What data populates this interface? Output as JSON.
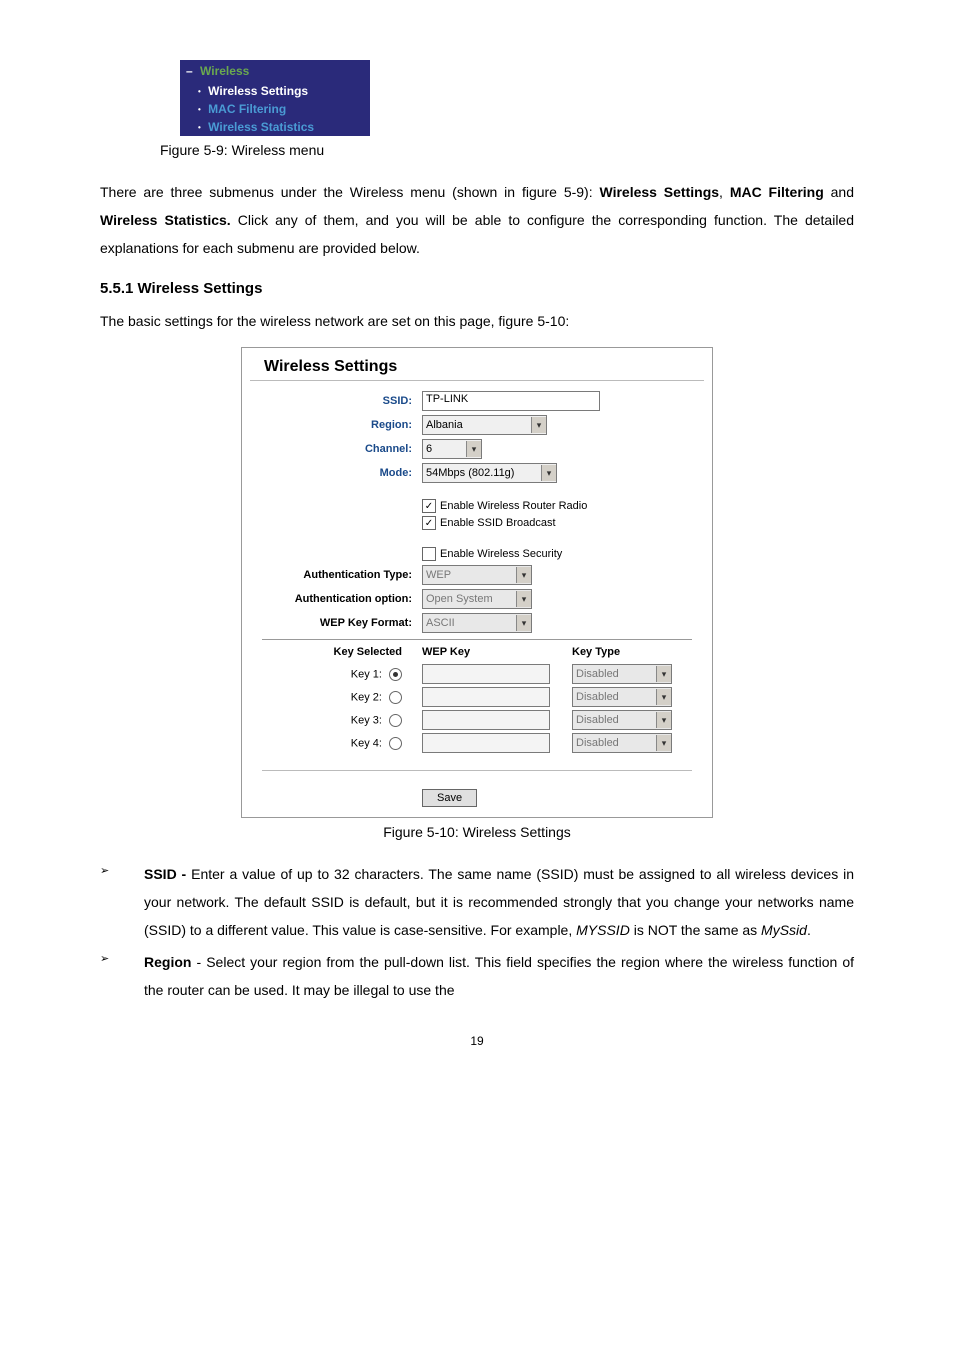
{
  "nav": {
    "header": "Wireless",
    "items": [
      {
        "label": "Wireless Settings",
        "active": true
      },
      {
        "label": "MAC Filtering",
        "active": false
      },
      {
        "label": "Wireless Statistics",
        "active": false
      }
    ]
  },
  "caption_nav": "Figure 5-9: Wireless menu",
  "para1_a": "There are three submenus under the Wireless menu (shown in figure 5-9): ",
  "para1_b": "Wireless Settings",
  "para1_c": ", ",
  "para1_d": "MAC Filtering",
  "para1_e": " and ",
  "para1_f": "Wireless Statistics.",
  "para1_g": " Click any of them, and you will be able to configure the corresponding function. The detailed explanations for each submenu are provided below.",
  "heading_551": "5.5.1  Wireless Settings",
  "para2": "The basic settings for the wireless network are set on this page, figure 5-10:",
  "ws": {
    "title": "Wireless Settings",
    "ssid_label": "SSID:",
    "ssid_value": "TP-LINK",
    "region_label": "Region:",
    "region_value": "Albania",
    "channel_label": "Channel:",
    "channel_value": "6",
    "mode_label": "Mode:",
    "mode_value": "54Mbps (802.11g)",
    "cb_router": "Enable Wireless Router Radio",
    "cb_ssid": "Enable SSID Broadcast",
    "cb_sec": "Enable Wireless Security",
    "auth_type_label": "Authentication Type:",
    "auth_type_value": "WEP",
    "auth_opt_label": "Authentication option:",
    "auth_opt_value": "Open System",
    "wep_fmt_label": "WEP Key Format:",
    "wep_fmt_value": "ASCII",
    "col_sel": "Key Selected",
    "col_key": "WEP Key",
    "col_type": "Key Type",
    "keys": [
      {
        "label": "Key 1:",
        "checked": true,
        "type": "Disabled"
      },
      {
        "label": "Key 2:",
        "checked": false,
        "type": "Disabled"
      },
      {
        "label": "Key 3:",
        "checked": false,
        "type": "Disabled"
      },
      {
        "label": "Key 4:",
        "checked": false,
        "type": "Disabled"
      }
    ],
    "save": "Save"
  },
  "caption_ws": "Figure 5-10: Wireless Settings",
  "bullets": [
    {
      "bold": "SSID - ",
      "text_a": "Enter a value of up to 32 characters. The same name (SSID) must be assigned to all wireless devices in your network. The default SSID is default, but it is recommended strongly that you change your networks name (SSID) to a different value. This value is case-sensitive. For example, ",
      "i1": "MYSSID",
      "text_b": " is NOT the same as ",
      "i2": "MySsid",
      "text_c": "."
    },
    {
      "bold": "Region ",
      "text_a": "- Select your region from the pull-down list. This field specifies the region where the wireless function of the router can be used. It may be illegal to use the",
      "i1": "",
      "text_b": "",
      "i2": "",
      "text_c": ""
    }
  ],
  "page_num": "19",
  "colors": {
    "nav_bg": "#2a2a7a",
    "nav_green": "#6aa84f",
    "nav_blue": "#4a9bd4",
    "label_blue": "#1a4a8a"
  }
}
